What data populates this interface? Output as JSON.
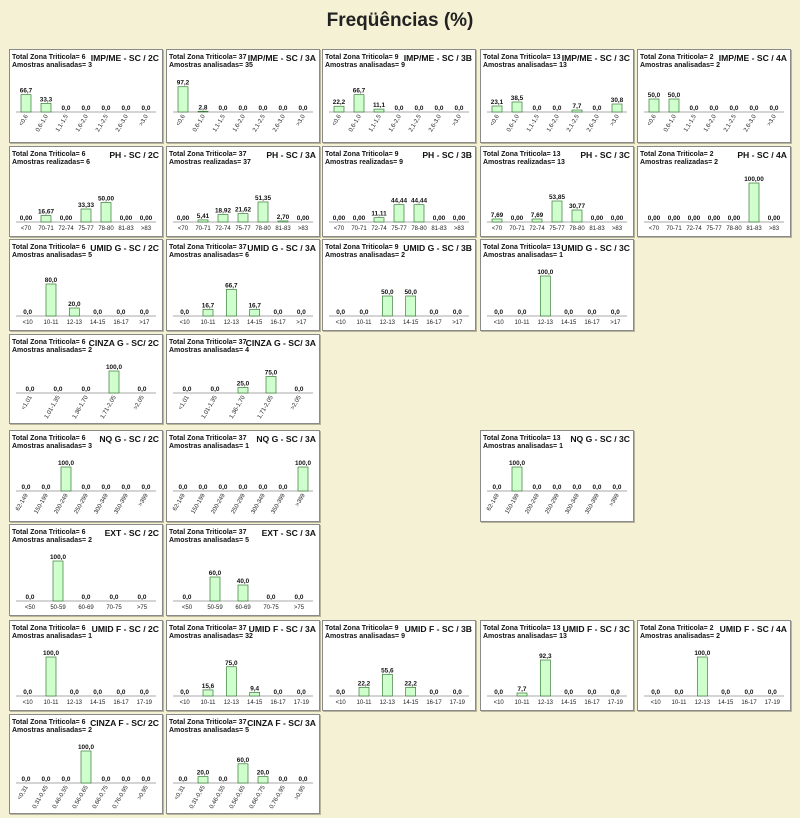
{
  "page": {
    "title": "Freqüências (%)"
  },
  "chart_data": [
    {
      "type": "bar",
      "row": 0,
      "col": 0,
      "title": "IMP/ME - SC / 2C",
      "total_label": "Total Zona Triticola",
      "total_value": "6",
      "sample_label": "Amostras analisadas",
      "sample_value": "3",
      "rot": true,
      "categories": [
        "<0,6",
        "0,6-1,0",
        "1,1-1,5",
        "1,6-2,0",
        "2,1-2,5",
        "2,6-3,0",
        ">3,0"
      ],
      "values": [
        66.7,
        33.3,
        0,
        0,
        0,
        0,
        0
      ],
      "labels": [
        "66,7",
        "33,3",
        "0,0",
        "0,0",
        "0,0",
        "0,0",
        "0,0"
      ]
    },
    {
      "type": "bar",
      "row": 0,
      "col": 1,
      "title": "IMP/ME - SC / 3A",
      "total_label": "Total Zona Triticola",
      "total_value": "37",
      "sample_label": "Amostras analisadas",
      "sample_value": "35",
      "rot": true,
      "categories": [
        "<0,6",
        "0,6-1,0",
        "1,1-1,5",
        "1,6-2,0",
        "2,1-2,5",
        "2,6-3,0",
        ">3,0"
      ],
      "values": [
        97.2,
        2.8,
        0,
        0,
        0,
        0,
        0
      ],
      "labels": [
        "97,2",
        "2,8",
        "0,0",
        "0,0",
        "0,0",
        "0,0",
        "0,0"
      ]
    },
    {
      "type": "bar",
      "row": 0,
      "col": 2,
      "title": "IMP/ME - SC / 3B",
      "total_label": "Total Zona Triticola",
      "total_value": "9",
      "sample_label": "Amostras analisadas",
      "sample_value": "9",
      "rot": true,
      "categories": [
        "<0,6",
        "0,6-1,0",
        "1,1-1,5",
        "1,6-2,0",
        "2,1-2,5",
        "2,6-3,0",
        ">3,0"
      ],
      "values": [
        22.2,
        66.7,
        11.1,
        0,
        0,
        0,
        0
      ],
      "labels": [
        "22,2",
        "66,7",
        "11,1",
        "0,0",
        "0,0",
        "0,0",
        "0,0"
      ]
    },
    {
      "type": "bar",
      "row": 0,
      "col": 3,
      "title": "IMP/ME - SC / 3C",
      "total_label": "Total Zona Triticola",
      "total_value": "13",
      "sample_label": "Amostras analisadas",
      "sample_value": "13",
      "rot": true,
      "categories": [
        "<0,6",
        "0,6-1,0",
        "1,1-1,5",
        "1,6-2,0",
        "2,1-2,5",
        "2,6-3,0",
        ">3,0"
      ],
      "values": [
        23.1,
        38.5,
        0,
        0,
        7.7,
        0,
        30.8
      ],
      "labels": [
        "23,1",
        "38,5",
        "0,0",
        "0,0",
        "7,7",
        "0,0",
        "30,8"
      ]
    },
    {
      "type": "bar",
      "row": 0,
      "col": 4,
      "title": "IMP/ME - SC / 4A",
      "total_label": "Total Zona Triticola",
      "total_value": "2",
      "sample_label": "Amostras analisadas",
      "sample_value": "2",
      "rot": true,
      "categories": [
        "<0,6",
        "0,6-1,0",
        "1,1-1,5",
        "1,6-2,0",
        "2,1-2,5",
        "2,6-3,0",
        ">3,0"
      ],
      "values": [
        50,
        50,
        0,
        0,
        0,
        0,
        0
      ],
      "labels": [
        "50,0",
        "50,0",
        "0,0",
        "0,0",
        "0,0",
        "0,0",
        "0,0"
      ]
    },
    {
      "type": "bar",
      "row": 1,
      "col": 0,
      "title": "PH - SC / 2C",
      "total_label": "Total Zona Triticola",
      "total_value": "6",
      "sample_label": "Amostras realizadas",
      "sample_value": "6",
      "rot": false,
      "categories": [
        "<70",
        "70-71",
        "72-74",
        "75-77",
        "78-80",
        "81-83",
        ">83"
      ],
      "values": [
        0,
        16.67,
        0,
        33.33,
        50,
        0,
        0
      ],
      "labels": [
        "0,00",
        "16,67",
        "0,00",
        "33,33",
        "50,00",
        "0,00",
        "0,00"
      ]
    },
    {
      "type": "bar",
      "row": 1,
      "col": 1,
      "title": "PH - SC / 3A",
      "total_label": "Total Zona Triticola",
      "total_value": "37",
      "sample_label": "Amostras realizadas",
      "sample_value": "37",
      "rot": false,
      "categories": [
        "<70",
        "70-71",
        "72-74",
        "75-77",
        "78-80",
        "81-83",
        ">83"
      ],
      "values": [
        0,
        5.41,
        18.92,
        21.62,
        51.35,
        2.7,
        0
      ],
      "labels": [
        "0,00",
        "5,41",
        "18,92",
        "21,62",
        "51,35",
        "2,70",
        "0,00"
      ]
    },
    {
      "type": "bar",
      "row": 1,
      "col": 2,
      "title": "PH - SC / 3B",
      "total_label": "Total Zona Triticola",
      "total_value": "9",
      "sample_label": "Amostras realizadas",
      "sample_value": "9",
      "rot": false,
      "categories": [
        "<70",
        "70-71",
        "72-74",
        "75-77",
        "78-80",
        "81-83",
        ">83"
      ],
      "values": [
        0,
        0,
        11.11,
        44.44,
        44.44,
        0,
        0
      ],
      "labels": [
        "0,00",
        "0,00",
        "11,11",
        "44,44",
        "44,44",
        "0,00",
        "0,00"
      ]
    },
    {
      "type": "bar",
      "row": 1,
      "col": 3,
      "title": "PH - SC / 3C",
      "total_label": "Total Zona Triticola",
      "total_value": "13",
      "sample_label": "Amostras realizadas",
      "sample_value": "13",
      "rot": false,
      "categories": [
        "<70",
        "70-71",
        "72-74",
        "75-77",
        "78-80",
        "81-83",
        ">83"
      ],
      "values": [
        7.69,
        0,
        7.69,
        53.85,
        30.77,
        0,
        0
      ],
      "labels": [
        "7,69",
        "0,00",
        "7,69",
        "53,85",
        "30,77",
        "0,00",
        "0,00"
      ]
    },
    {
      "type": "bar",
      "row": 1,
      "col": 4,
      "title": "PH - SC / 4A",
      "total_label": "Total Zona Triticola",
      "total_value": "2",
      "sample_label": "Amostras realizadas",
      "sample_value": "2",
      "rot": false,
      "categories": [
        "<70",
        "70-71",
        "72-74",
        "75-77",
        "78-80",
        "81-83",
        ">83"
      ],
      "values": [
        0,
        0,
        0,
        0,
        0,
        100,
        0
      ],
      "labels": [
        "0,00",
        "0,00",
        "0,00",
        "0,00",
        "0,00",
        "100,00",
        "0,00"
      ]
    },
    {
      "type": "bar",
      "row": 2,
      "col": 0,
      "title": "UMID G - SC / 2C",
      "total_label": "Total Zona Triticola",
      "total_value": "6",
      "sample_label": "Amostras analisadas",
      "sample_value": "5",
      "rot": false,
      "categories": [
        "<10",
        "10-11",
        "12-13",
        "14-15",
        "16-17",
        ">17"
      ],
      "values": [
        0,
        80,
        20,
        0,
        0,
        0
      ],
      "labels": [
        "0,0",
        "80,0",
        "20,0",
        "0,0",
        "0,0",
        "0,0"
      ]
    },
    {
      "type": "bar",
      "row": 2,
      "col": 1,
      "title": "UMID G - SC / 3A",
      "total_label": "Total Zona Triticola",
      "total_value": "37",
      "sample_label": "Amostras analisadas",
      "sample_value": "6",
      "rot": false,
      "categories": [
        "<10",
        "10-11",
        "12-13",
        "14-15",
        "16-17",
        ">17"
      ],
      "values": [
        0,
        16.7,
        66.7,
        16.7,
        0,
        0
      ],
      "labels": [
        "0,0",
        "16,7",
        "66,7",
        "16,7",
        "0,0",
        "0,0"
      ]
    },
    {
      "type": "bar",
      "row": 2,
      "col": 2,
      "title": "UMID G - SC / 3B",
      "total_label": "Total Zona Triticola",
      "total_value": "9",
      "sample_label": "Amostras analisadas",
      "sample_value": "2",
      "rot": false,
      "categories": [
        "<10",
        "10-11",
        "12-13",
        "14-15",
        "16-17",
        ">17"
      ],
      "values": [
        0,
        0,
        50,
        50,
        0,
        0
      ],
      "labels": [
        "0,0",
        "0,0",
        "50,0",
        "50,0",
        "0,0",
        "0,0"
      ]
    },
    {
      "type": "bar",
      "row": 2,
      "col": 3,
      "title": "UMID G - SC / 3C",
      "total_label": "Total Zona Triticola",
      "total_value": "13",
      "sample_label": "Amostras analisadas",
      "sample_value": "1",
      "rot": false,
      "categories": [
        "<10",
        "10-11",
        "12-13",
        "14-15",
        "16-17",
        ">17"
      ],
      "values": [
        0,
        0,
        100,
        0,
        0,
        0
      ],
      "labels": [
        "0,0",
        "0,0",
        "100,0",
        "0,0",
        "0,0",
        "0,0"
      ]
    },
    {
      "type": "bar",
      "row": 3,
      "col": 0,
      "title": "CINZA G - SC/ 2C",
      "total_label": "Total Zona Triticola",
      "total_value": "6",
      "sample_label": "Amostras analisadas",
      "sample_value": "2",
      "rot": true,
      "categories": [
        "<1,01",
        "1,01-1,35",
        "1,36-1,70",
        "1,71-2,05",
        ">2,05"
      ],
      "values": [
        0,
        0,
        0,
        100,
        0
      ],
      "labels": [
        "0,0",
        "0,0",
        "0,0",
        "100,0",
        "0,0"
      ]
    },
    {
      "type": "bar",
      "row": 3,
      "col": 1,
      "title": "CINZA G - SC/ 3A",
      "total_label": "Total Zona Triticola",
      "total_value": "37",
      "sample_label": "Amostras analisadas",
      "sample_value": "4",
      "rot": true,
      "categories": [
        "<1,01",
        "1,01-1,35",
        "1,36-1,70",
        "1,71-2,05",
        ">2,05"
      ],
      "values": [
        0,
        0,
        25,
        75,
        0
      ],
      "labels": [
        "0,0",
        "0,0",
        "25,0",
        "75,0",
        "0,0"
      ]
    },
    {
      "type": "bar",
      "row": 4,
      "col": 0,
      "title": "NQ G - SC / 2C",
      "total_label": "Total Zona Triticola",
      "total_value": "6",
      "sample_label": "Amostras analisadas",
      "sample_value": "3",
      "rot": true,
      "categories": [
        "62-149",
        "150-199",
        "200-249",
        "250-299",
        "300-349",
        "350-399",
        ">399"
      ],
      "values": [
        0,
        0,
        100,
        0,
        0,
        0,
        0
      ],
      "labels": [
        "0,0",
        "0,0",
        "100,0",
        "0,0",
        "0,0",
        "0,0",
        "0,0"
      ]
    },
    {
      "type": "bar",
      "row": 4,
      "col": 1,
      "title": "NQ G - SC / 3A",
      "total_label": "Total Zona Triticola",
      "total_value": "37",
      "sample_label": "Amostras analisadas",
      "sample_value": "1",
      "rot": true,
      "categories": [
        "62-149",
        "150-199",
        "200-249",
        "250-299",
        "300-349",
        "350-399",
        ">399"
      ],
      "values": [
        0,
        0,
        0,
        0,
        0,
        0,
        100
      ],
      "labels": [
        "0,0",
        "0,0",
        "0,0",
        "0,0",
        "0,0",
        "0,0",
        "100,0"
      ]
    },
    {
      "type": "bar",
      "row": 4,
      "col": 3,
      "title": "NQ G - SC / 3C",
      "total_label": "Total Zona Triticola",
      "total_value": "13",
      "sample_label": "Amostras analisadas",
      "sample_value": "1",
      "rot": true,
      "categories": [
        "62-149",
        "150-199",
        "200-249",
        "250-299",
        "300-349",
        "350-399",
        ">399"
      ],
      "values": [
        0,
        100,
        0,
        0,
        0,
        0,
        0
      ],
      "labels": [
        "0,0",
        "100,0",
        "0,0",
        "0,0",
        "0,0",
        "0,0",
        "0,0"
      ]
    },
    {
      "type": "bar",
      "row": 5,
      "col": 0,
      "title": "EXT - SC / 2C",
      "total_label": "Total Zona Triticola",
      "total_value": "6",
      "sample_label": "Amostras analisadas",
      "sample_value": "2",
      "rot": false,
      "categories": [
        "<50",
        "50-59",
        "60-69",
        "70-75",
        ">75"
      ],
      "values": [
        0,
        100,
        0,
        0,
        0
      ],
      "labels": [
        "0,0",
        "100,0",
        "0,0",
        "0,0",
        "0,0"
      ]
    },
    {
      "type": "bar",
      "row": 5,
      "col": 1,
      "title": "EXT - SC / 3A",
      "total_label": "Total Zona Triticola",
      "total_value": "37",
      "sample_label": "Amostras analisadas",
      "sample_value": "5",
      "rot": false,
      "categories": [
        "<50",
        "50-59",
        "60-69",
        "70-75",
        ">75"
      ],
      "values": [
        0,
        60,
        40,
        0,
        0
      ],
      "labels": [
        "0,0",
        "60,0",
        "40,0",
        "0,0",
        "0,0"
      ]
    },
    {
      "type": "bar",
      "row": 6,
      "col": 0,
      "title": "UMID F - SC / 2C",
      "total_label": "Total Zona Triticola",
      "total_value": "6",
      "sample_label": "Amostras analisadas",
      "sample_value": "1",
      "rot": false,
      "categories": [
        "<10",
        "10-11",
        "12-13",
        "14-15",
        "16-17",
        "17-19"
      ],
      "values": [
        0,
        100,
        0,
        0,
        0,
        0
      ],
      "labels": [
        "0,0",
        "100,0",
        "0,0",
        "0,0",
        "0,0",
        "0,0"
      ]
    },
    {
      "type": "bar",
      "row": 6,
      "col": 1,
      "title": "UMID F - SC / 3A",
      "total_label": "Total Zona Triticola",
      "total_value": "37",
      "sample_label": "Amostras analisadas",
      "sample_value": "32",
      "rot": false,
      "categories": [
        "<10",
        "10-11",
        "12-13",
        "14-15",
        "16-17",
        "17-19"
      ],
      "values": [
        0,
        15.6,
        75,
        9.4,
        0,
        0
      ],
      "labels": [
        "0,0",
        "15,6",
        "75,0",
        "9,4",
        "0,0",
        "0,0"
      ]
    },
    {
      "type": "bar",
      "row": 6,
      "col": 2,
      "title": "UMID F - SC / 3B",
      "total_label": "Total Zona Triticola",
      "total_value": "9",
      "sample_label": "Amostras analisadas",
      "sample_value": "9",
      "rot": false,
      "categories": [
        "<10",
        "10-11",
        "12-13",
        "14-15",
        "16-17",
        "17-19"
      ],
      "values": [
        0,
        22.2,
        55.6,
        22.2,
        0,
        0
      ],
      "labels": [
        "0,0",
        "22,2",
        "55,6",
        "22,2",
        "0,0",
        "0,0"
      ]
    },
    {
      "type": "bar",
      "row": 6,
      "col": 3,
      "title": "UMID F - SC / 3C",
      "total_label": "Total Zona Triticola",
      "total_value": "13",
      "sample_label": "Amostras analisadas",
      "sample_value": "13",
      "rot": false,
      "categories": [
        "<10",
        "10-11",
        "12-13",
        "14-15",
        "16-17",
        "17-19"
      ],
      "values": [
        0,
        7.7,
        92.3,
        0,
        0,
        0
      ],
      "labels": [
        "0,0",
        "7,7",
        "92,3",
        "0,0",
        "0,0",
        "0,0"
      ]
    },
    {
      "type": "bar",
      "row": 6,
      "col": 4,
      "title": "UMID F - SC / 4A",
      "total_label": "Total Zona Triticola",
      "total_value": "2",
      "sample_label": "Amostras analisadas",
      "sample_value": "2",
      "rot": false,
      "categories": [
        "<10",
        "10-11",
        "12-13",
        "14-15",
        "16-17",
        "17-19"
      ],
      "values": [
        0,
        0,
        100,
        0,
        0,
        0
      ],
      "labels": [
        "0,0",
        "0,0",
        "100,0",
        "0,0",
        "0,0",
        "0,0"
      ]
    },
    {
      "type": "bar",
      "row": 7,
      "col": 0,
      "title": "CINZA F - SC/ 2C",
      "total_label": "Total Zona Triticola",
      "total_value": "6",
      "sample_label": "Amostras analisadas",
      "sample_value": "2",
      "rot": true,
      "categories": [
        "<0,31",
        "0,31-0,45",
        "0,46-0,55",
        "0,56-0,65",
        "0,66-0,75",
        "0,76-0,95",
        ">0,95"
      ],
      "values": [
        0,
        0,
        0,
        100,
        0,
        0,
        0
      ],
      "labels": [
        "0,0",
        "0,0",
        "0,0",
        "100,0",
        "0,0",
        "0,0",
        "0,0"
      ]
    },
    {
      "type": "bar",
      "row": 7,
      "col": 1,
      "title": "CINZA F - SC/ 3A",
      "total_label": "Total Zona Triticola",
      "total_value": "37",
      "sample_label": "Amostras analisadas",
      "sample_value": "5",
      "rot": true,
      "categories": [
        "<0,31",
        "0,31-0,45",
        "0,46-0,55",
        "0,56-0,65",
        "0,66-0,75",
        "0,76-0,95",
        ">0,95"
      ],
      "values": [
        0,
        20,
        0,
        60,
        20,
        0,
        0
      ],
      "labels": [
        "0,0",
        "20,0",
        "0,0",
        "60,0",
        "20,0",
        "0,0",
        "0,0"
      ]
    }
  ]
}
